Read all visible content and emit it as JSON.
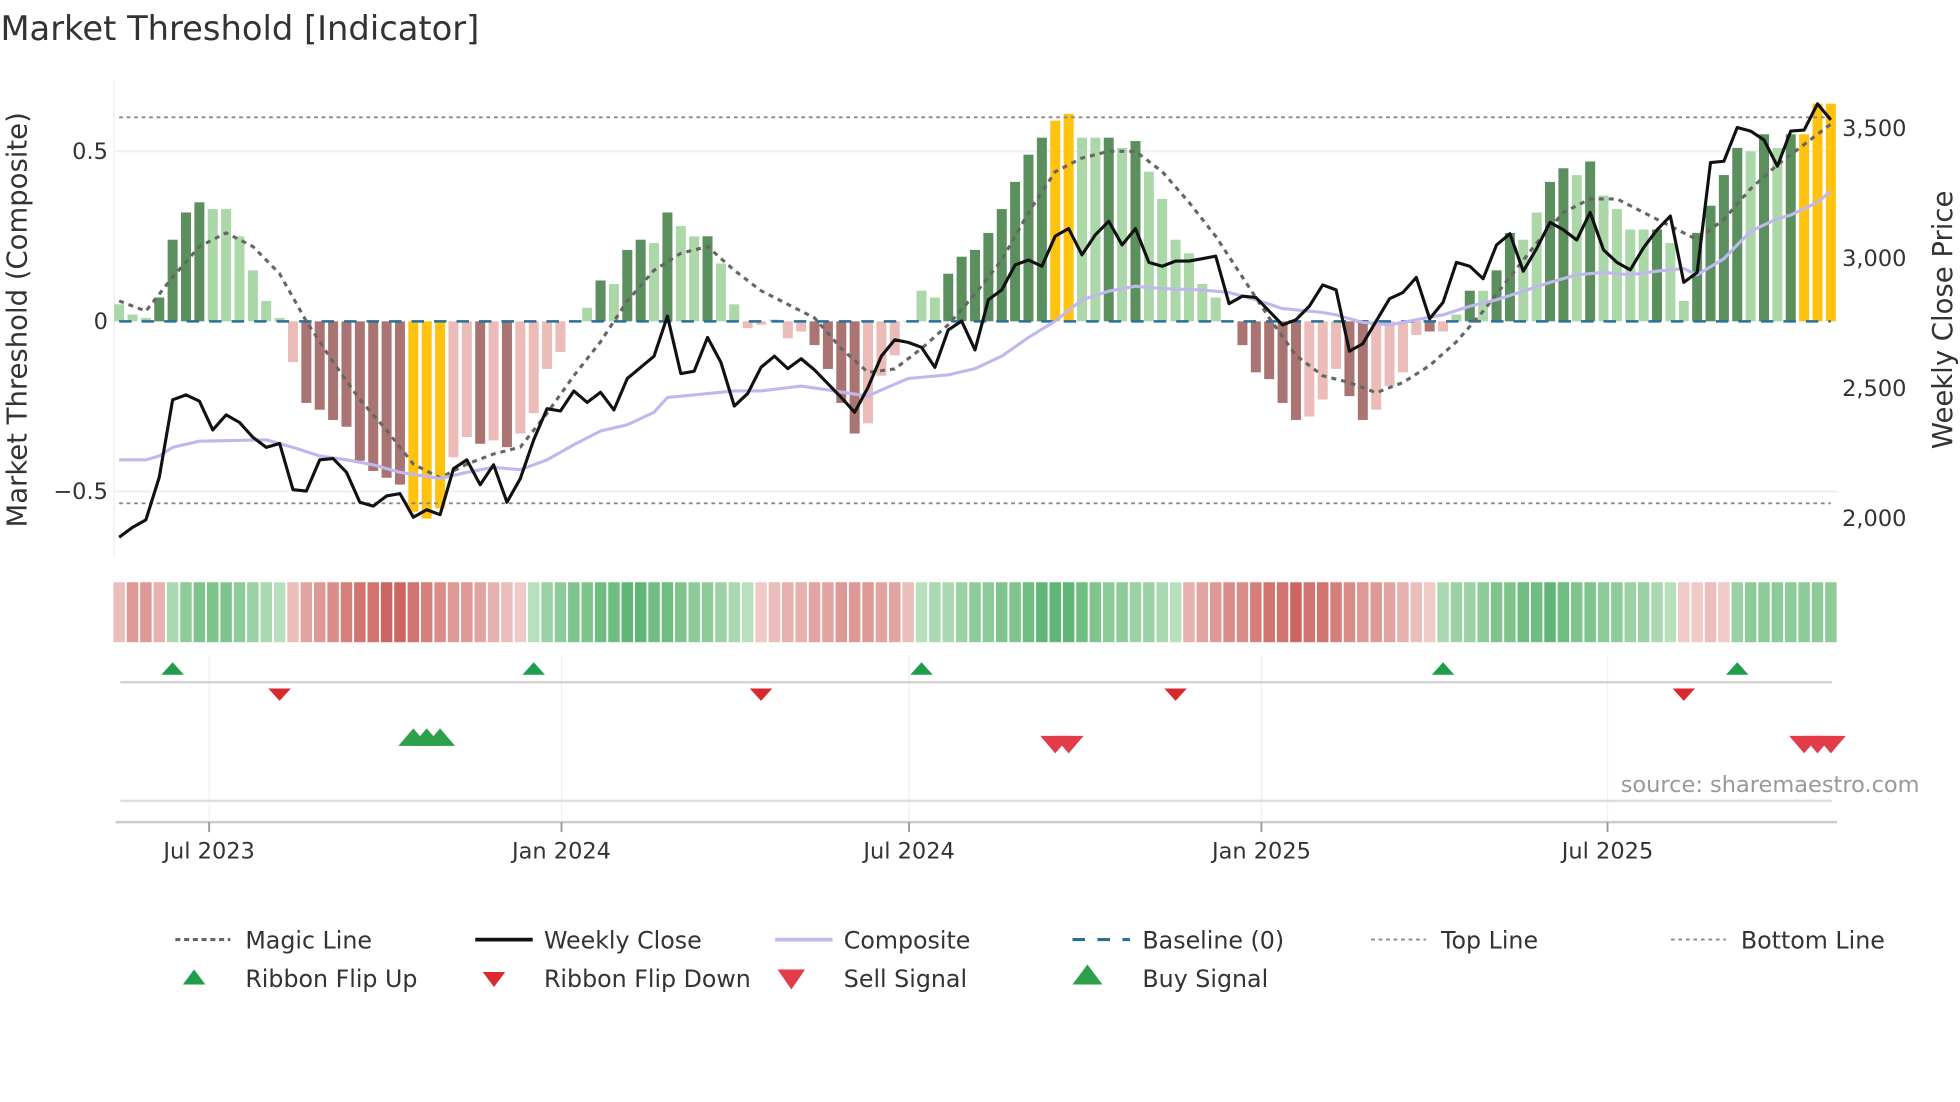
{
  "chart_data": {
    "type": "bar",
    "title": "Market Threshold [Indicator]",
    "ylabel_left": "Market Threshold (Composite)",
    "ylabel_right": "Weekly Close Price",
    "source": "source: sharemaestro.com",
    "ylim_left": [
      -0.69,
      0.706
    ],
    "ylim_right": [
      1851,
      3678
    ],
    "left_ticks": [
      {
        "v": 0.5,
        "label": "0.5"
      },
      {
        "v": 0,
        "label": "0"
      },
      {
        "v": -0.5,
        "label": "−0.5"
      }
    ],
    "right_ticks": [
      {
        "v": 3500,
        "label": "3,500"
      },
      {
        "v": 3000,
        "label": "3,000"
      },
      {
        "v": 2500,
        "label": "2,500"
      },
      {
        "v": 2000,
        "label": "2,000"
      }
    ],
    "x_ticks": [
      {
        "week": 6.73,
        "label": "Jul 2023"
      },
      {
        "week": 33.08,
        "label": "Jan 2024"
      },
      {
        "week": 59.07,
        "label": "Jul 2024"
      },
      {
        "week": 85.42,
        "label": "Jan 2025"
      },
      {
        "week": 111.3,
        "label": "Jul 2025"
      }
    ],
    "top_line": 0.6,
    "bottom_line": -0.535,
    "baseline": 0,
    "bar_states_legend": {
      "G": "strong positive",
      "g": "weak positive",
      "R": "strong negative",
      "r": "weak negative",
      "Y": "extreme"
    },
    "bars": [
      [
        0.05,
        "g"
      ],
      [
        0.02,
        "g"
      ],
      [
        0.01,
        "g"
      ],
      [
        0.07,
        "G"
      ],
      [
        0.24,
        "G"
      ],
      [
        0.32,
        "G"
      ],
      [
        0.35,
        "G"
      ],
      [
        0.33,
        "g"
      ],
      [
        0.33,
        "g"
      ],
      [
        0.25,
        "g"
      ],
      [
        0.15,
        "g"
      ],
      [
        0.06,
        "g"
      ],
      [
        0.01,
        "g"
      ],
      [
        -0.12,
        "r"
      ],
      [
        -0.24,
        "R"
      ],
      [
        -0.26,
        "R"
      ],
      [
        -0.29,
        "R"
      ],
      [
        -0.31,
        "R"
      ],
      [
        -0.41,
        "R"
      ],
      [
        -0.44,
        "R"
      ],
      [
        -0.46,
        "R"
      ],
      [
        -0.48,
        "R"
      ],
      [
        -0.56,
        "Y"
      ],
      [
        -0.58,
        "Y"
      ],
      [
        -0.55,
        "Y"
      ],
      [
        -0.4,
        "r"
      ],
      [
        -0.34,
        "r"
      ],
      [
        -0.36,
        "R"
      ],
      [
        -0.35,
        "r"
      ],
      [
        -0.37,
        "R"
      ],
      [
        -0.33,
        "r"
      ],
      [
        -0.27,
        "r"
      ],
      [
        -0.14,
        "r"
      ],
      [
        -0.09,
        "r"
      ],
      [
        0.0,
        "g"
      ],
      [
        0.04,
        "g"
      ],
      [
        0.12,
        "G"
      ],
      [
        0.11,
        "g"
      ],
      [
        0.21,
        "G"
      ],
      [
        0.24,
        "G"
      ],
      [
        0.23,
        "g"
      ],
      [
        0.32,
        "G"
      ],
      [
        0.28,
        "g"
      ],
      [
        0.25,
        "g"
      ],
      [
        0.25,
        "G"
      ],
      [
        0.17,
        "g"
      ],
      [
        0.05,
        "g"
      ],
      [
        -0.02,
        "r"
      ],
      [
        -0.01,
        "r"
      ],
      [
        0.005,
        "g"
      ],
      [
        -0.05,
        "r"
      ],
      [
        -0.03,
        "r"
      ],
      [
        -0.07,
        "R"
      ],
      [
        -0.14,
        "R"
      ],
      [
        -0.24,
        "R"
      ],
      [
        -0.33,
        "R"
      ],
      [
        -0.3,
        "r"
      ],
      [
        -0.16,
        "r"
      ],
      [
        -0.1,
        "r"
      ],
      [
        0.0,
        "g"
      ],
      [
        0.09,
        "g"
      ],
      [
        0.07,
        "g"
      ],
      [
        0.14,
        "G"
      ],
      [
        0.19,
        "G"
      ],
      [
        0.21,
        "G"
      ],
      [
        0.26,
        "G"
      ],
      [
        0.33,
        "G"
      ],
      [
        0.41,
        "G"
      ],
      [
        0.49,
        "G"
      ],
      [
        0.54,
        "G"
      ],
      [
        0.59,
        "Y"
      ],
      [
        0.61,
        "Y"
      ],
      [
        0.54,
        "g"
      ],
      [
        0.54,
        "g"
      ],
      [
        0.54,
        "G"
      ],
      [
        0.51,
        "g"
      ],
      [
        0.53,
        "G"
      ],
      [
        0.44,
        "g"
      ],
      [
        0.36,
        "g"
      ],
      [
        0.24,
        "g"
      ],
      [
        0.2,
        "g"
      ],
      [
        0.11,
        "g"
      ],
      [
        0.07,
        "g"
      ],
      [
        0.0,
        "r"
      ],
      [
        -0.07,
        "R"
      ],
      [
        -0.15,
        "R"
      ],
      [
        -0.17,
        "R"
      ],
      [
        -0.24,
        "R"
      ],
      [
        -0.29,
        "R"
      ],
      [
        -0.28,
        "r"
      ],
      [
        -0.23,
        "r"
      ],
      [
        -0.14,
        "r"
      ],
      [
        -0.22,
        "R"
      ],
      [
        -0.29,
        "R"
      ],
      [
        -0.26,
        "r"
      ],
      [
        -0.19,
        "r"
      ],
      [
        -0.15,
        "r"
      ],
      [
        -0.04,
        "r"
      ],
      [
        -0.03,
        "R"
      ],
      [
        -0.03,
        "r"
      ],
      [
        0.02,
        "g"
      ],
      [
        0.09,
        "G"
      ],
      [
        0.09,
        "g"
      ],
      [
        0.15,
        "G"
      ],
      [
        0.26,
        "G"
      ],
      [
        0.24,
        "g"
      ],
      [
        0.32,
        "g"
      ],
      [
        0.41,
        "G"
      ],
      [
        0.45,
        "G"
      ],
      [
        0.43,
        "g"
      ],
      [
        0.47,
        "G"
      ],
      [
        0.37,
        "g"
      ],
      [
        0.33,
        "g"
      ],
      [
        0.27,
        "g"
      ],
      [
        0.27,
        "g"
      ],
      [
        0.27,
        "G"
      ],
      [
        0.23,
        "g"
      ],
      [
        0.06,
        "g"
      ],
      [
        0.26,
        "G"
      ],
      [
        0.34,
        "G"
      ],
      [
        0.43,
        "G"
      ],
      [
        0.51,
        "G"
      ],
      [
        0.5,
        "g"
      ],
      [
        0.55,
        "G"
      ],
      [
        0.51,
        "g"
      ],
      [
        0.55,
        "G"
      ],
      [
        0.55,
        "Y"
      ],
      [
        0.64,
        "Y"
      ],
      [
        0.64,
        "Y"
      ]
    ],
    "weekly_close": [
      1923,
      1961,
      1990,
      2154,
      2452,
      2471,
      2447,
      2336,
      2394,
      2365,
      2308,
      2269,
      2284,
      2106,
      2101,
      2221,
      2226,
      2173,
      2058,
      2043,
      2082,
      2091,
      2000,
      2029,
      2010,
      2187,
      2221,
      2125,
      2202,
      2058,
      2149,
      2298,
      2418,
      2409,
      2486,
      2442,
      2481,
      2413,
      2534,
      2577,
      2620,
      2774,
      2553,
      2562,
      2692,
      2596,
      2428,
      2476,
      2577,
      2620,
      2572,
      2610,
      2567,
      2514,
      2461,
      2404,
      2500,
      2620,
      2683,
      2673,
      2654,
      2577,
      2721,
      2755,
      2644,
      2837,
      2875,
      2971,
      2990,
      2966,
      3082,
      3111,
      3010,
      3087,
      3139,
      3048,
      3111,
      2981,
      2966,
      2986,
      2986,
      2995,
      3005,
      2822,
      2851,
      2846,
      2793,
      2740,
      2760,
      2812,
      2894,
      2875,
      2639,
      2668,
      2755,
      2841,
      2865,
      2923,
      2764,
      2827,
      2981,
      2966,
      2918,
      3048,
      3091,
      2947,
      3034,
      3135,
      3106,
      3067,
      3173,
      3029,
      2981,
      2952,
      3038,
      3106,
      3159,
      2904,
      2942,
      3365,
      3370,
      3500,
      3486,
      3452,
      3351,
      3486,
      3490,
      3591,
      3529
    ],
    "composite": [
      [
        0,
        2221
      ],
      [
        2,
        2221
      ],
      [
        3,
        2236
      ],
      [
        4,
        2269
      ],
      [
        6,
        2293
      ],
      [
        11,
        2298
      ],
      [
        13,
        2269
      ],
      [
        15,
        2236
      ],
      [
        17,
        2221
      ],
      [
        19,
        2202
      ],
      [
        21,
        2173
      ],
      [
        24,
        2149
      ],
      [
        26,
        2173
      ],
      [
        28,
        2192
      ],
      [
        30,
        2183
      ],
      [
        32,
        2221
      ],
      [
        34,
        2279
      ],
      [
        36,
        2332
      ],
      [
        38,
        2356
      ],
      [
        40,
        2404
      ],
      [
        41,
        2461
      ],
      [
        44,
        2476
      ],
      [
        46,
        2486
      ],
      [
        48,
        2486
      ],
      [
        51,
        2505
      ],
      [
        53,
        2490
      ],
      [
        56,
        2466
      ],
      [
        57,
        2490
      ],
      [
        59,
        2534
      ],
      [
        62,
        2548
      ],
      [
        64,
        2572
      ],
      [
        66,
        2620
      ],
      [
        68,
        2692
      ],
      [
        70,
        2755
      ],
      [
        72,
        2837
      ],
      [
        74,
        2870
      ],
      [
        76,
        2889
      ],
      [
        78,
        2880
      ],
      [
        81,
        2875
      ],
      [
        83,
        2865
      ],
      [
        85,
        2837
      ],
      [
        87,
        2803
      ],
      [
        90,
        2788
      ],
      [
        91,
        2779
      ],
      [
        93,
        2750
      ],
      [
        95,
        2740
      ],
      [
        97,
        2760
      ],
      [
        99,
        2779
      ],
      [
        101,
        2812
      ],
      [
        103,
        2837
      ],
      [
        105,
        2870
      ],
      [
        107,
        2904
      ],
      [
        109,
        2933
      ],
      [
        111,
        2942
      ],
      [
        113,
        2933
      ],
      [
        115,
        2947
      ],
      [
        117,
        2957
      ],
      [
        118,
        2933
      ],
      [
        120,
        2995
      ],
      [
        122,
        3101
      ],
      [
        124,
        3149
      ],
      [
        125,
        3163
      ],
      [
        127,
        3212
      ],
      [
        128,
        3255
      ]
    ],
    "magic_line_step": 2,
    "magic_line": [
      0.06,
      0.03,
      0.13,
      0.22,
      0.26,
      0.22,
      0.14,
      0.0,
      -0.12,
      -0.23,
      -0.32,
      -0.42,
      -0.46,
      -0.42,
      -0.39,
      -0.37,
      -0.27,
      -0.16,
      -0.06,
      0.06,
      0.15,
      0.2,
      0.22,
      0.15,
      0.09,
      0.05,
      0.01,
      -0.08,
      -0.15,
      -0.14,
      -0.08,
      -0.01,
      0.08,
      0.18,
      0.32,
      0.44,
      0.48,
      0.5,
      0.5,
      0.44,
      0.35,
      0.25,
      0.13,
      0.01,
      -0.1,
      -0.16,
      -0.18,
      -0.21,
      -0.18,
      -0.13,
      -0.06,
      0.03,
      0.13,
      0.23,
      0.32,
      0.36,
      0.36,
      0.32,
      0.28,
      0.24,
      0.3,
      0.39,
      0.46,
      0.52,
      0.58
    ],
    "ribbon": [
      -0.2,
      -0.5,
      -0.5,
      -0.3,
      0.3,
      0.5,
      0.6,
      0.6,
      0.6,
      0.5,
      0.4,
      0.3,
      0.2,
      -0.2,
      -0.4,
      -0.5,
      -0.6,
      -0.7,
      -0.8,
      -0.8,
      -0.9,
      -0.9,
      -0.8,
      -0.7,
      -0.6,
      -0.5,
      -0.5,
      -0.4,
      -0.3,
      -0.2,
      -0.1,
      0.2,
      0.4,
      0.5,
      0.6,
      0.6,
      0.7,
      0.7,
      0.8,
      0.8,
      0.7,
      0.7,
      0.6,
      0.5,
      0.5,
      0.4,
      0.3,
      0.2,
      -0.1,
      -0.2,
      -0.3,
      -0.3,
      -0.4,
      -0.4,
      -0.5,
      -0.5,
      -0.5,
      -0.4,
      -0.4,
      -0.2,
      0.2,
      0.3,
      0.3,
      0.4,
      0.5,
      0.5,
      0.6,
      0.6,
      0.7,
      0.8,
      0.8,
      0.8,
      0.7,
      0.6,
      0.5,
      0.5,
      0.4,
      0.4,
      0.3,
      0.2,
      -0.3,
      -0.4,
      -0.5,
      -0.6,
      -0.6,
      -0.7,
      -0.8,
      -0.8,
      -0.9,
      -0.8,
      -0.8,
      -0.7,
      -0.6,
      -0.5,
      -0.5,
      -0.4,
      -0.3,
      -0.2,
      -0.1,
      0.3,
      0.4,
      0.4,
      0.5,
      0.6,
      0.6,
      0.7,
      0.7,
      0.8,
      0.7,
      0.6,
      0.6,
      0.5,
      0.5,
      0.4,
      0.4,
      0.3,
      0.2,
      -0.1,
      -0.1,
      -0.2,
      -0.1,
      0.4,
      0.5,
      0.5,
      0.5,
      0.5,
      0.5,
      0.5,
      0.5
    ],
    "ribbon_flip_up": [
      4,
      31,
      60,
      99,
      121
    ],
    "ribbon_flip_down": [
      12,
      48,
      79,
      117
    ],
    "buy_signals": [
      22,
      23,
      24
    ],
    "sell_signals": [
      70,
      71,
      126,
      127,
      128
    ],
    "legend": [
      {
        "key": "magic",
        "label": "Magic Line"
      },
      {
        "key": "close",
        "label": "Weekly Close"
      },
      {
        "key": "composite",
        "label": "Composite"
      },
      {
        "key": "baseline",
        "label": "Baseline (0)"
      },
      {
        "key": "top",
        "label": "Top Line"
      },
      {
        "key": "bottom",
        "label": "Bottom Line"
      },
      {
        "key": "flipup",
        "label": "Ribbon Flip Up"
      },
      {
        "key": "flipdown",
        "label": "Ribbon Flip Down"
      },
      {
        "key": "sell",
        "label": "Sell Signal"
      },
      {
        "key": "buy",
        "label": "Buy Signal"
      }
    ],
    "colors": {
      "G": "#5b8f5e",
      "g": "#acd7a8",
      "R": "#a97471",
      "r": "#ebbcb8",
      "Y": "#ffc20e",
      "close": "#111111",
      "composite": "#c0b8ec",
      "magic": "#666666",
      "baseline": "#2a6f97",
      "flip_up": "#1e9e4a",
      "flip_down": "#d9282f",
      "buy": "#2ca04a",
      "sell": "#e23b4a"
    }
  }
}
